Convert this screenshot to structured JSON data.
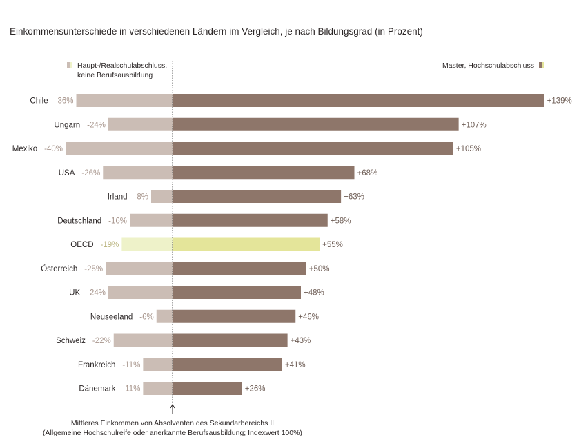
{
  "chart_data": {
    "type": "bar",
    "title": "Einkommensunterschiede in verschiedenen Ländern im Vergleich, je nach Bildungsgrad (in Prozent)",
    "categories": [
      "Chile",
      "Ungarn",
      "Mexiko",
      "USA",
      "Irland",
      "Deutschland",
      "OECD",
      "Österreich",
      "UK",
      "Neuseeland",
      "Schweiz",
      "Frankreich",
      "Dänemark"
    ],
    "series": [
      {
        "name": "Haupt-/Realschulabschluss, keine Berufsausbildung",
        "values": [
          -36,
          -24,
          -40,
          -26,
          -8,
          -16,
          -19,
          -25,
          -24,
          -6,
          -22,
          -11,
          -11
        ],
        "labels": [
          "-36%",
          "-24%",
          "-40%",
          "-26%",
          "-8%",
          "-16%",
          "-19%",
          "-25%",
          "-24%",
          "-6%",
          "-22%",
          "-11%",
          "-11%"
        ],
        "color": "#cbbdb5",
        "highlight_color": "#eef2c9"
      },
      {
        "name": "Master, Hochschulabschluss",
        "values": [
          139,
          107,
          105,
          68,
          63,
          58,
          55,
          50,
          48,
          46,
          43,
          41,
          26
        ],
        "labels": [
          "+139%",
          "+107%",
          "+105%",
          "+68%",
          "+63%",
          "+58%",
          "+55%",
          "+50%",
          "+48%",
          "+46%",
          "+43%",
          "+41%",
          "+26%"
        ],
        "color": "#8e766a",
        "highlight_color": "#e4e59a"
      }
    ],
    "highlight_category": "OECD",
    "baseline_value": 0,
    "legend": {
      "left_label": "Haupt-/Realschulabschluss, keine Berufsausbildung",
      "right_label": "Master, Hochschulabschluss",
      "placement": "top"
    },
    "footnote_line1": "Mittleres Einkommen von Absolventen des Sekundarbereichs II",
    "footnote_line2": "(Allgemeine Hochschulreife oder anerkannte Berufsausbildung; Indexwert 100%)",
    "grid": false
  },
  "colors": {
    "text": "#2b2626",
    "neg_label": "#a8968d",
    "pos_label": "#6e5d55",
    "highlight_label": "#b7b17a",
    "baseline": "#555555"
  }
}
